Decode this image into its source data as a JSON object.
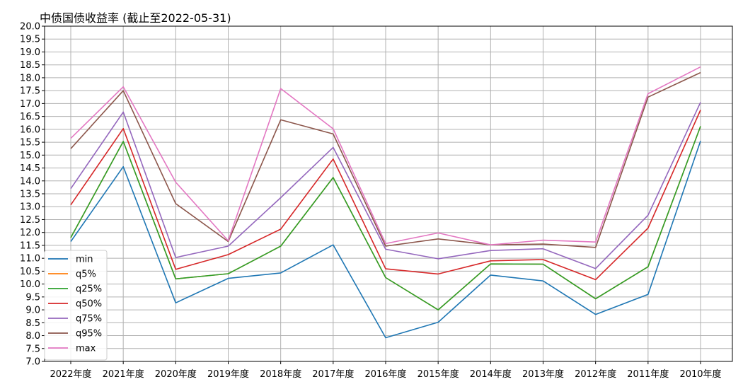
{
  "chart_data": {
    "type": "line",
    "title": "中债国债收益率 (截止至2022-05-31)",
    "xlabel": "",
    "ylabel": "",
    "ylim": [
      7.0,
      20.0
    ],
    "ytick_step": 0.5,
    "grid": true,
    "legend_position": "lower-left",
    "categories": [
      "2022年度",
      "2021年度",
      "2020年度",
      "2019年度",
      "2018年度",
      "2017年度",
      "2016年度",
      "2015年度",
      "2014年度",
      "2013年度",
      "2012年度",
      "2011年度",
      "2010年度"
    ],
    "series": [
      {
        "name": "min",
        "color": "#1f77b4",
        "values": [
          11.65,
          14.55,
          9.27,
          10.22,
          10.43,
          11.52,
          7.92,
          8.52,
          10.35,
          10.12,
          8.82,
          9.6,
          15.55
        ]
      },
      {
        "name": "q5%",
        "color": "#ff7f0e",
        "values": [
          11.8,
          15.53,
          10.2,
          10.4,
          11.47,
          14.13,
          10.25,
          9.0,
          10.78,
          10.77,
          9.43,
          10.67,
          16.12
        ]
      },
      {
        "name": "q25%",
        "color": "#2ca02c",
        "values": [
          11.8,
          15.53,
          10.2,
          10.4,
          11.47,
          14.13,
          10.25,
          9.0,
          10.78,
          10.77,
          9.43,
          10.67,
          16.12
        ]
      },
      {
        "name": "q50%",
        "color": "#d62728",
        "values": [
          13.07,
          16.03,
          10.57,
          11.14,
          12.13,
          14.85,
          10.59,
          10.39,
          10.9,
          10.95,
          10.17,
          12.17,
          16.75
        ]
      },
      {
        "name": "q75%",
        "color": "#9467bd",
        "values": [
          13.7,
          16.67,
          11.03,
          11.47,
          13.35,
          15.3,
          11.35,
          10.98,
          11.3,
          11.37,
          10.6,
          12.67,
          17.05
        ]
      },
      {
        "name": "q95%",
        "color": "#8c564b",
        "values": [
          15.25,
          17.5,
          13.12,
          11.65,
          16.37,
          15.82,
          11.47,
          11.75,
          11.52,
          11.55,
          11.42,
          17.25,
          18.2
        ]
      },
      {
        "name": "max",
        "color": "#e377c2",
        "values": [
          15.65,
          17.65,
          13.95,
          11.68,
          17.58,
          16.02,
          11.57,
          11.98,
          11.52,
          11.7,
          11.63,
          17.38,
          18.42
        ]
      }
    ]
  }
}
